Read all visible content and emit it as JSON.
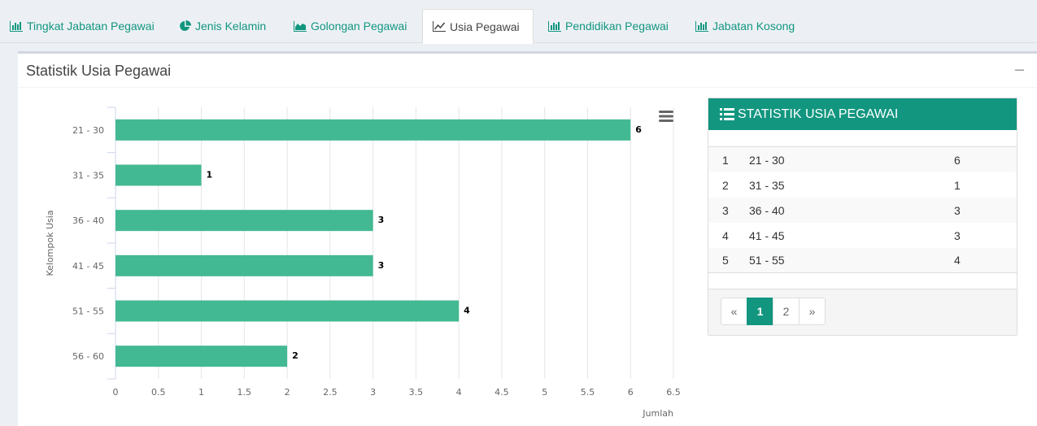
{
  "tabs": [
    {
      "label": "Tingkat Jabatan Pegawai",
      "icon": "bar-chart-icon"
    },
    {
      "label": "Jenis Kelamin",
      "icon": "pie-chart-icon"
    },
    {
      "label": "Golongan Pegawai",
      "icon": "area-chart-icon"
    },
    {
      "label": "Usia Pegawai",
      "icon": "line-chart-icon",
      "active": true
    },
    {
      "label": "Pendidikan Pegawai",
      "icon": "bar-chart-icon"
    },
    {
      "label": "Jabatan Kosong",
      "icon": "bar-chart-icon"
    }
  ],
  "box": {
    "title": "Statistik Usia Pegawai",
    "collapse_label": "−"
  },
  "chart_data": {
    "type": "bar",
    "orientation": "horizontal",
    "categories": [
      "21 - 30",
      "31 - 35",
      "36 - 40",
      "41 - 45",
      "51 - 55",
      "56 - 60"
    ],
    "values": [
      6,
      1,
      3,
      3,
      4,
      2
    ],
    "xlabel": "Jumlah",
    "ylabel": "Kelompok Usia",
    "xlim": [
      0,
      6.5
    ],
    "xticks": [
      "0",
      "0.5",
      "1",
      "1.5",
      "2",
      "2.5",
      "3",
      "3.5",
      "4",
      "4.5",
      "5",
      "5.5",
      "6",
      "6.5"
    ],
    "grid": true,
    "data_labels": true,
    "color": "#43b993"
  },
  "table": {
    "title": "STATISTIK USIA PEGAWAI",
    "icon": "list-icon",
    "rows": [
      {
        "no": "1",
        "range": "21 - 30",
        "count": "6"
      },
      {
        "no": "2",
        "range": "31 - 35",
        "count": "1"
      },
      {
        "no": "3",
        "range": "36 - 40",
        "count": "3"
      },
      {
        "no": "4",
        "range": "41 - 45",
        "count": "3"
      },
      {
        "no": "5",
        "range": "51 - 55",
        "count": "4"
      }
    ],
    "pagination": {
      "prev": "«",
      "pages": [
        "1",
        "2"
      ],
      "current": "1",
      "next": "»"
    }
  },
  "colors": {
    "accent": "#12967f",
    "bar": "#43b993"
  }
}
